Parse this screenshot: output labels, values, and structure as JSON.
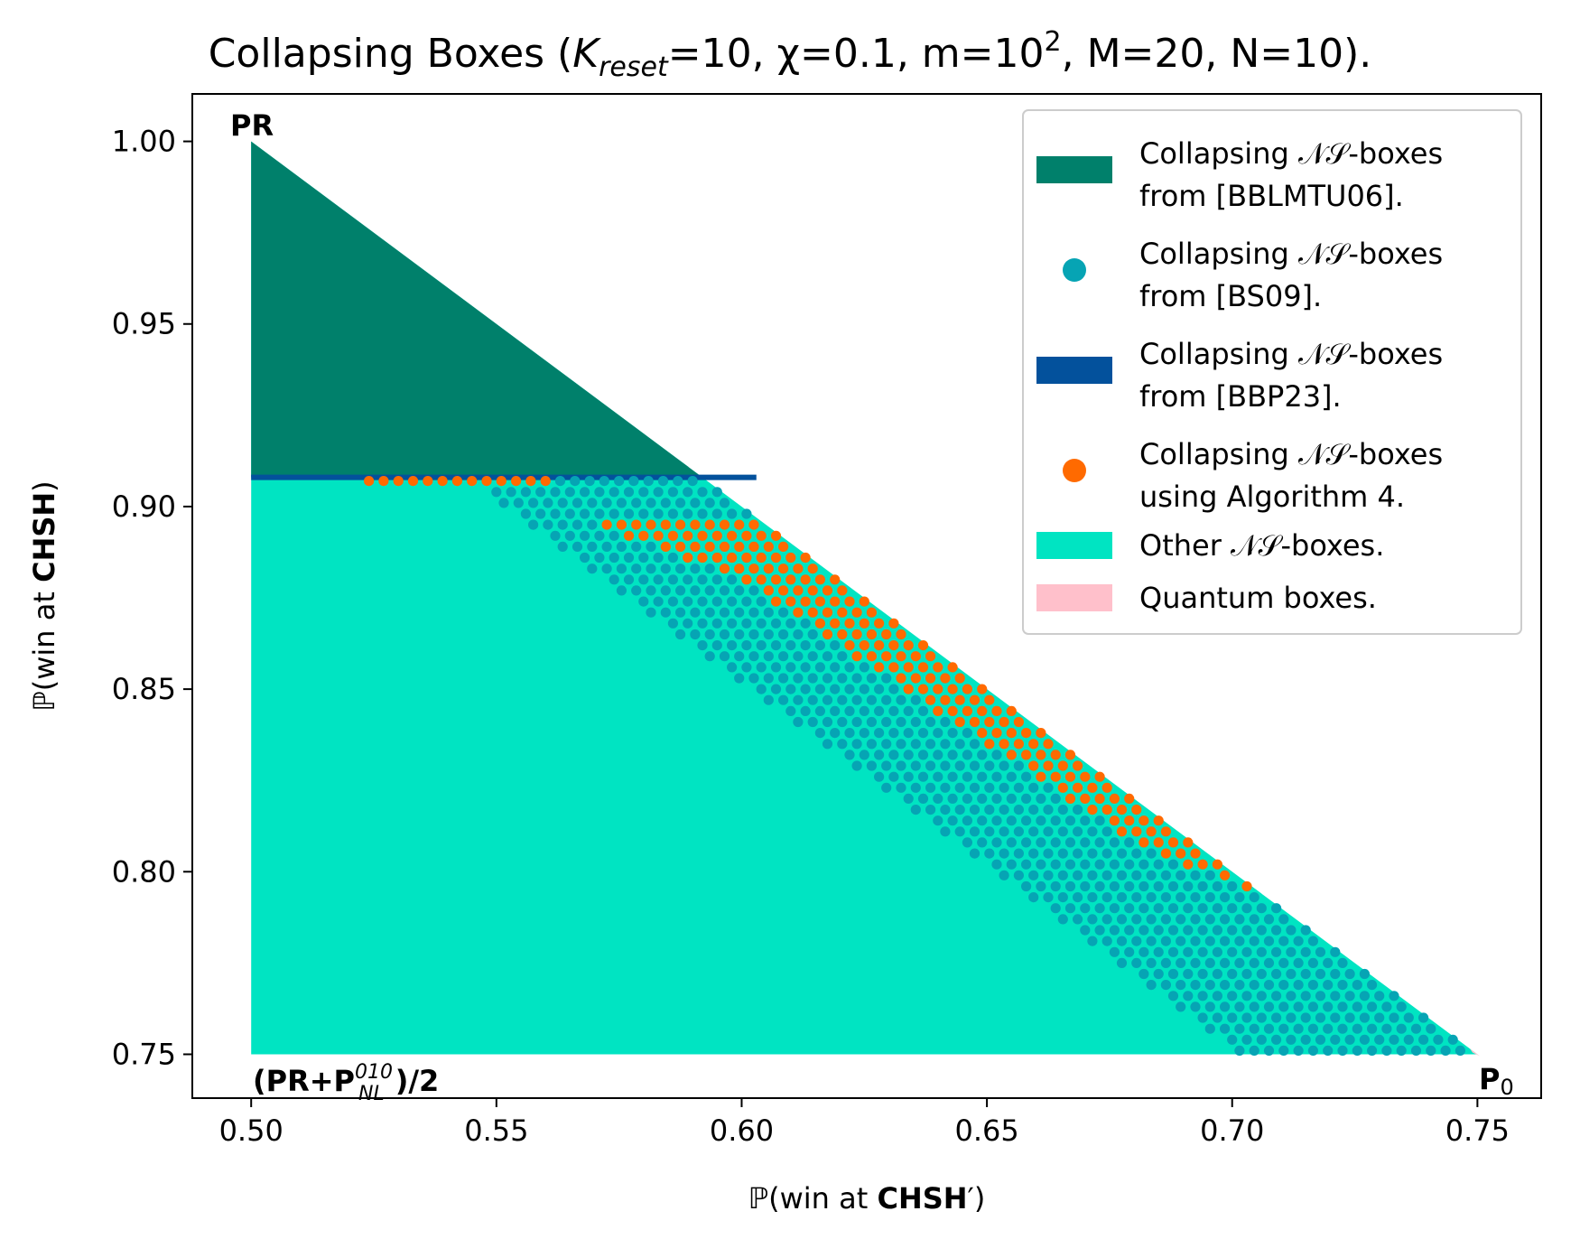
{
  "chart_data": {
    "type": "scatter",
    "title": {
      "pre": "Collapsing Boxes (",
      "k_symbol": "K",
      "k_sub": "reset",
      "mid": "=10, χ=0.1, m=10",
      "m_sup": "2",
      "post": ", M=20, N=10)."
    },
    "xlabel": {
      "pre": "ℙ(win at ",
      "bold": "CHSH",
      "post": "′)"
    },
    "ylabel": {
      "pre": "ℙ(win at ",
      "bold": "CHSH",
      "post": ")"
    },
    "xlim": [
      0.488,
      0.763
    ],
    "ylim": [
      0.738,
      1.013
    ],
    "x_ticks": [
      "0.50",
      "0.55",
      "0.60",
      "0.65",
      "0.70",
      "0.75"
    ],
    "y_ticks": [
      "0.75",
      "0.80",
      "0.85",
      "0.90",
      "0.95",
      "1.00"
    ],
    "grid": false,
    "legend_position": "top-right",
    "colors": {
      "bblmtu06": "#00806b",
      "bs09": "#06a4b4",
      "bbp23": "#03519c",
      "algo4": "#ff6a00",
      "other": "#00e4c2",
      "quantum": "#ffc0cb"
    },
    "legend": [
      {
        "key": "bblmtu06",
        "marker": "patch",
        "line1": "Collapsing 𝒩𝒮-boxes",
        "line2": "from [BBLMTU06]."
      },
      {
        "key": "bs09",
        "marker": "dot",
        "line1": "Collapsing 𝒩𝒮-boxes",
        "line2": "from [BS09]."
      },
      {
        "key": "bbp23",
        "marker": "patch",
        "line1": "Collapsing 𝒩𝒮-boxes",
        "line2": "from [BBP23]."
      },
      {
        "key": "algo4",
        "marker": "dot",
        "line1": "Collapsing 𝒩𝒮-boxes",
        "line2": "using Algorithm 4."
      },
      {
        "key": "other",
        "marker": "patch",
        "line1": "Other 𝒩𝒮-boxes.",
        "line2": ""
      },
      {
        "key": "quantum",
        "marker": "patch",
        "line1": "Quantum boxes.",
        "line2": ""
      }
    ],
    "regions": {
      "ns_triangle": [
        [
          0.5,
          0.75
        ],
        [
          0.5,
          1.0
        ],
        [
          0.75,
          0.75
        ]
      ],
      "bblmtu06_triangle": [
        [
          0.5,
          0.908
        ],
        [
          0.5,
          1.0
        ],
        [
          0.592,
          0.908
        ]
      ],
      "bbp23_band": {
        "y": 0.908,
        "x_from": 0.5,
        "x_to": 0.603
      }
    },
    "grid_points": {
      "dx": 0.003,
      "dy": 0.003,
      "x_start": 0.503,
      "y_start": 0.751,
      "y_end": 0.908,
      "algo4_boundary": [
        [
          0.503,
          0.908
        ],
        [
          0.56,
          0.905
        ],
        [
          0.565,
          0.898
        ],
        [
          0.6,
          0.88
        ],
        [
          0.65,
          0.835
        ],
        [
          0.68,
          0.808
        ],
        [
          0.71,
          0.785
        ]
      ],
      "bs09_band": [
        [
          0.56,
          0.908
        ],
        [
          0.592,
          0.908
        ],
        [
          0.603,
          0.896
        ]
      ]
    },
    "annotations": {
      "pr": "PR",
      "pr_mix": {
        "pre": "(PR+P",
        "sup": "010",
        "sub": "NL",
        "post": ")/2"
      },
      "p0": {
        "main": "P",
        "sub": "0"
      }
    }
  }
}
